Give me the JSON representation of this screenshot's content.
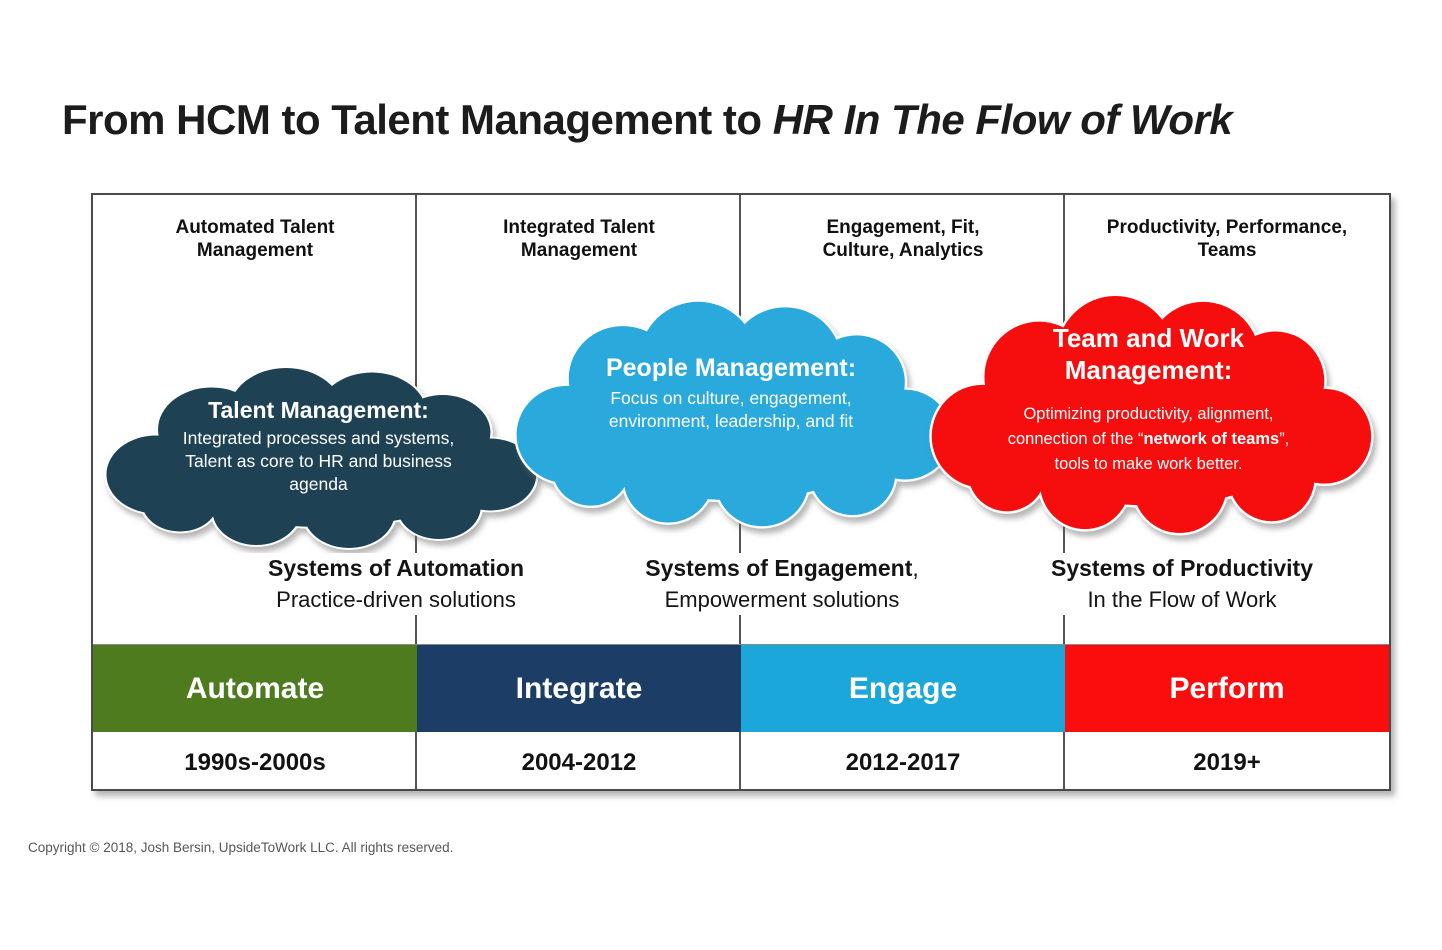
{
  "title": {
    "regular": "From HCM to Talent Management to ",
    "italic": "HR In The Flow of Work"
  },
  "columns": [
    {
      "header_line1": "Automated Talent",
      "header_line2": "Management",
      "bar_label": "Automate",
      "bar_color": "#4e7b1e",
      "date": "1990s-2000s"
    },
    {
      "header_line1": "Integrated Talent",
      "header_line2": "Management",
      "bar_label": "Integrate",
      "bar_color": "#1c3d66",
      "date": "2004-2012"
    },
    {
      "header_line1": "Engagement, Fit,",
      "header_line2": "Culture, Analytics",
      "bar_label": "Engage",
      "bar_color": "#1ba7da",
      "date": "2012-2017"
    },
    {
      "header_line1": "Productivity, Performance,",
      "header_line2": "Teams",
      "bar_label": "Perform",
      "bar_color": "#fb0d0d",
      "date": "2019+"
    }
  ],
  "clouds": [
    {
      "name": "talent-management",
      "color": "#1e4254",
      "title": "Talent Management:",
      "body": "Integrated processes and systems, Talent as core to HR and business agenda"
    },
    {
      "name": "people-management",
      "color": "#2aa9dc",
      "title": "People Management:",
      "body": "Focus on culture, engagement, environment, leadership, and fit"
    },
    {
      "name": "team-and-work-management",
      "color": "#f60e0e",
      "title": "Team and Work Management:",
      "body_pre": "Optimizing productivity, alignment, connection of the “",
      "body_bold": "network of teams",
      "body_post": "”, tools to make work better."
    }
  ],
  "systems": [
    {
      "line1_bold": "Systems of Automation",
      "line1_suffix": "",
      "line2": "Practice-driven solutions"
    },
    {
      "line1_bold": "Systems of Engagement",
      "line1_suffix": ",",
      "line2": "Empowerment solutions"
    },
    {
      "line1_bold": "Systems of Productivity",
      "line1_suffix": "",
      "line2": "In the Flow of Work"
    }
  ],
  "footer": {
    "copyright": "Copyright © 2018, Josh Bersin, UpsideToWork LLC. All rights reserved."
  }
}
